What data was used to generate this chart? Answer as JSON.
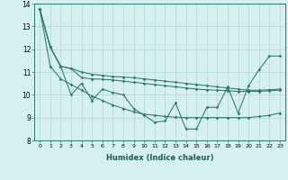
{
  "xlabel": "Humidex (Indice chaleur)",
  "x": [
    0,
    1,
    2,
    3,
    4,
    5,
    6,
    7,
    8,
    9,
    10,
    11,
    12,
    13,
    14,
    15,
    16,
    17,
    18,
    19,
    20,
    21,
    22,
    23
  ],
  "line_volatile": [
    13.75,
    12.1,
    11.25,
    10.0,
    10.5,
    9.75,
    10.25,
    10.1,
    10.0,
    9.4,
    9.1,
    8.8,
    8.85,
    9.65,
    8.5,
    8.5,
    9.45,
    9.45,
    10.35,
    9.2,
    10.4,
    11.1,
    11.7,
    11.7
  ],
  "line_upper": [
    13.75,
    12.1,
    11.25,
    11.15,
    11.0,
    10.9,
    10.85,
    10.8,
    10.78,
    10.75,
    10.7,
    10.65,
    10.6,
    10.55,
    10.5,
    10.45,
    10.4,
    10.35,
    10.3,
    10.25,
    10.2,
    10.2,
    10.22,
    10.25
  ],
  "line_mid": [
    13.75,
    12.1,
    11.25,
    11.15,
    10.75,
    10.7,
    10.68,
    10.65,
    10.6,
    10.55,
    10.5,
    10.45,
    10.4,
    10.35,
    10.3,
    10.25,
    10.22,
    10.2,
    10.18,
    10.15,
    10.15,
    10.15,
    10.18,
    10.2
  ],
  "line_lower": [
    13.75,
    11.25,
    10.7,
    10.45,
    10.2,
    9.95,
    9.75,
    9.55,
    9.4,
    9.25,
    9.15,
    9.1,
    9.05,
    9.02,
    9.0,
    9.0,
    9.0,
    9.0,
    9.0,
    9.0,
    9.0,
    9.05,
    9.1,
    9.2
  ],
  "ylim": [
    8,
    14
  ],
  "yticks": [
    8,
    9,
    10,
    11,
    12,
    13,
    14
  ],
  "xticks": [
    0,
    1,
    2,
    3,
    4,
    5,
    6,
    7,
    8,
    9,
    10,
    11,
    12,
    13,
    14,
    15,
    16,
    17,
    18,
    19,
    20,
    21,
    22,
    23
  ],
  "line_color": "#2a7a68",
  "bg_color": "#d6f0f0",
  "grid_color": "#afd8d0",
  "xlabel_color": "#1a5f50"
}
